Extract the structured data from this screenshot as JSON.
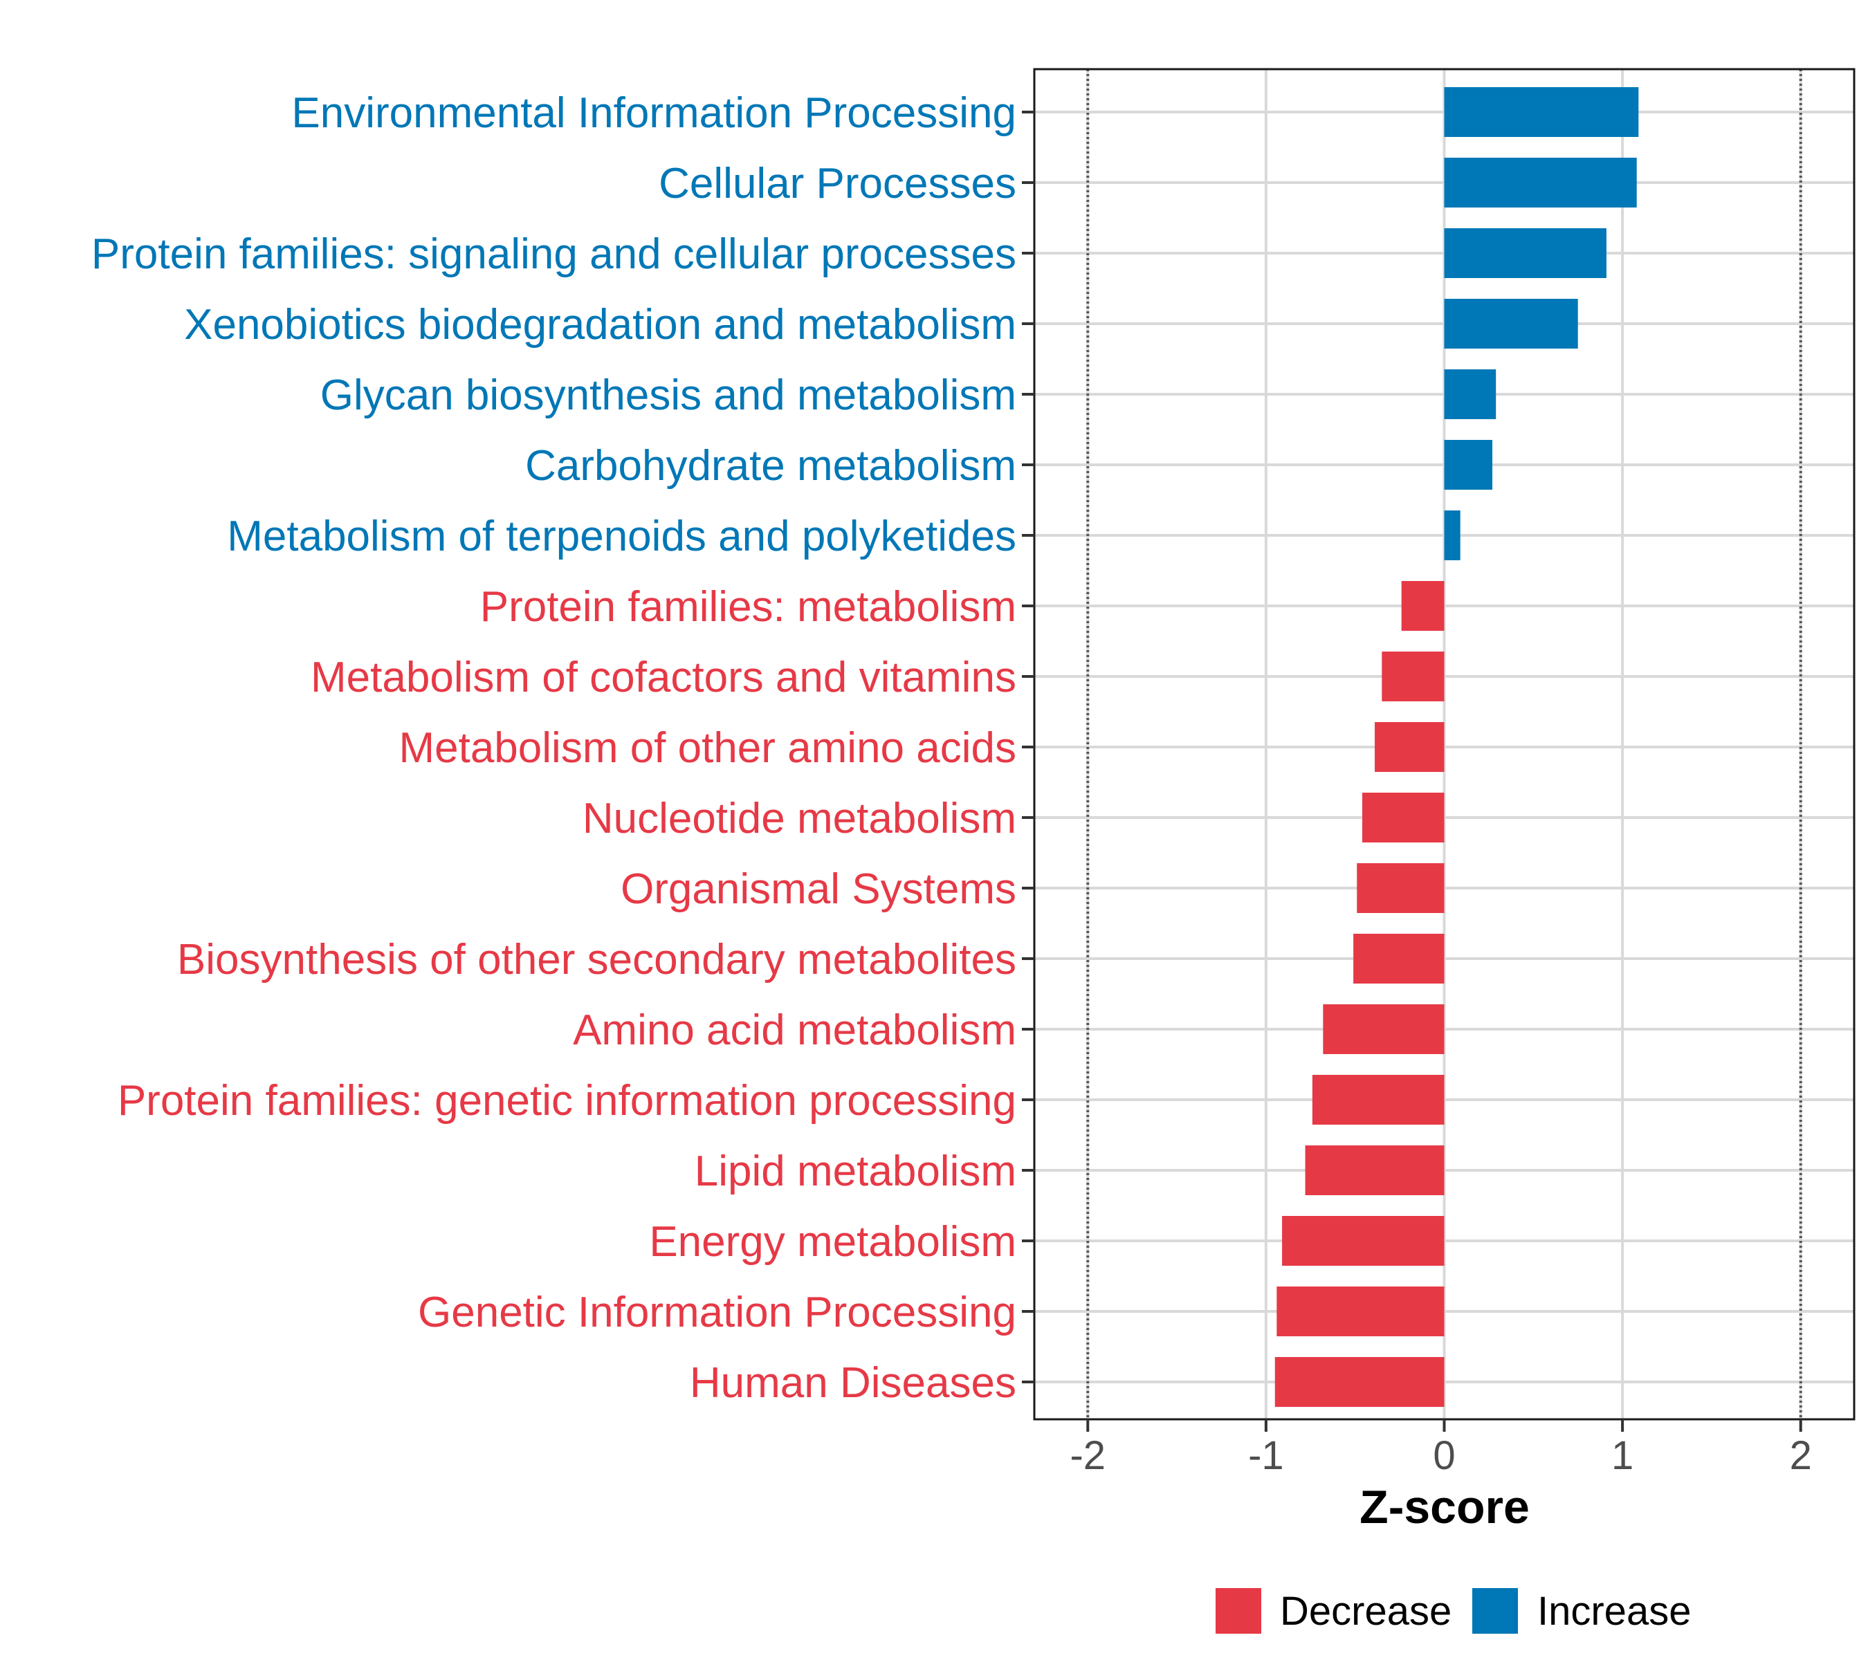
{
  "colors": {
    "decrease": "#E63946",
    "increase": "#0077B6",
    "grid": "#d9d9d9",
    "reference_line": "#555555",
    "tick_text": "#4d4d4d"
  },
  "chart_data": {
    "type": "bar",
    "orientation": "horizontal",
    "title": "",
    "xlabel": "Z-score",
    "ylabel": "",
    "xlim": [
      -2.3,
      2.3
    ],
    "xticks": [
      -2,
      -1,
      0,
      1,
      2
    ],
    "xtick_labels": [
      "-2",
      "-1",
      "0",
      "1",
      "2"
    ],
    "reference_lines": [
      -2,
      2
    ],
    "grid": true,
    "legend_position": "bottom",
    "legend": [
      {
        "name": "Decrease",
        "color": "#E63946"
      },
      {
        "name": "Increase",
        "color": "#0077B6"
      }
    ],
    "categories": [
      "Environmental Information Processing",
      "Cellular Processes",
      "Protein families: signaling and cellular processes",
      "Xenobiotics biodegradation and metabolism",
      "Glycan biosynthesis and metabolism",
      "Carbohydrate metabolism",
      "Metabolism of terpenoids and polyketides",
      "Protein families: metabolism",
      "Metabolism of cofactors and vitamins",
      "Metabolism of other amino acids",
      "Nucleotide metabolism",
      "Organismal Systems",
      "Biosynthesis of other secondary metabolites",
      "Amino acid metabolism",
      "Protein families: genetic information processing",
      "Lipid metabolism",
      "Energy metabolism",
      "Genetic Information Processing",
      "Human Diseases"
    ],
    "values": [
      1.09,
      1.08,
      0.91,
      0.75,
      0.29,
      0.27,
      0.09,
      -0.24,
      -0.35,
      -0.39,
      -0.46,
      -0.49,
      -0.51,
      -0.68,
      -0.74,
      -0.78,
      -0.91,
      -0.94,
      -0.95
    ],
    "groups": [
      "Increase",
      "Increase",
      "Increase",
      "Increase",
      "Increase",
      "Increase",
      "Increase",
      "Decrease",
      "Decrease",
      "Decrease",
      "Decrease",
      "Decrease",
      "Decrease",
      "Decrease",
      "Decrease",
      "Decrease",
      "Decrease",
      "Decrease",
      "Decrease"
    ]
  }
}
